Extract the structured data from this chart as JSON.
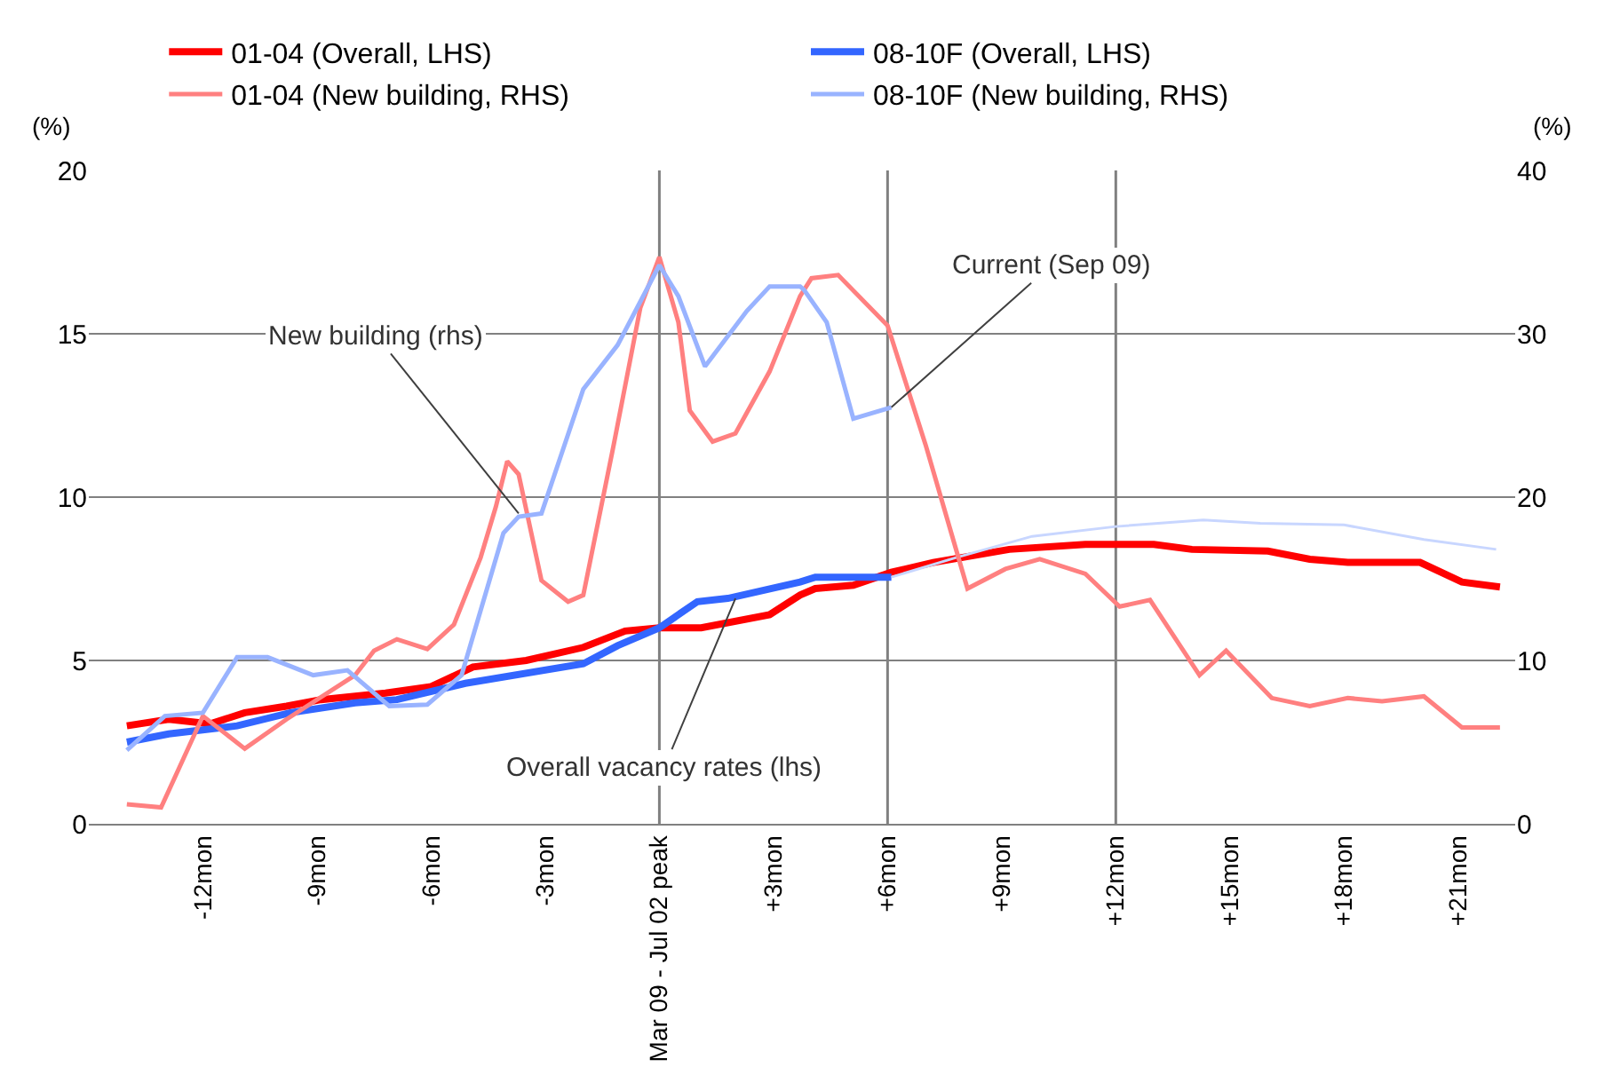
{
  "chart_data": {
    "type": "line",
    "ylabel": "(%)",
    "y2label": "(%)",
    "xlim": [
      -15,
      22.5
    ],
    "xticks": [
      {
        "value": -12,
        "label": "-12mon"
      },
      {
        "value": -9,
        "label": "-9mon"
      },
      {
        "value": -6,
        "label": "-6mon"
      },
      {
        "value": -3,
        "label": "-3mon"
      },
      {
        "value": 0,
        "label": "Mar 09 - Jul 02 peak"
      },
      {
        "value": 3,
        "label": "+3mon"
      },
      {
        "value": 6,
        "label": "+6mon"
      },
      {
        "value": 9,
        "label": "+9mon"
      },
      {
        "value": 12,
        "label": "+12mon"
      },
      {
        "value": 15,
        "label": "+15mon"
      },
      {
        "value": 18,
        "label": "+18mon"
      },
      {
        "value": 21,
        "label": "+21mon"
      }
    ],
    "ylim": [
      0,
      20
    ],
    "yticks": [
      0,
      5,
      10,
      15,
      20
    ],
    "y2lim": [
      0,
      40
    ],
    "y2ticks": [
      0,
      10,
      20,
      30,
      40
    ],
    "grid": "y",
    "legend": "top",
    "marker": "none",
    "line_style": "solid",
    "series": [
      {
        "name": "01-04 (Overall, LHS)",
        "color": "#ff0000",
        "x": [
          -14,
          -12.9,
          -11.8,
          -10.9,
          -9.8,
          -8.9,
          -7.2,
          -6,
          -4.9,
          -3.5,
          -2.0,
          -0.9,
          0,
          1.1,
          2.9,
          3.7,
          4.1,
          5.1,
          6.1,
          7.2,
          9.2,
          11.2,
          13.0,
          14.0,
          16.0,
          17.1,
          18.1,
          20.0,
          21.1,
          22.1
        ],
        "values": [
          3.0,
          3.2,
          3.06,
          3.4,
          3.6,
          3.8,
          4.0,
          4.2,
          4.8,
          5.0,
          5.4,
          5.9,
          6.0,
          6.0,
          6.4,
          7.0,
          7.2,
          7.3,
          7.7,
          8.0,
          8.4,
          8.55,
          8.55,
          8.4,
          8.35,
          8.1,
          8.0,
          8.0,
          7.4,
          7.25
        ]
      },
      {
        "name": "08-10F (Overall, LHS)",
        "color": "#3366ff",
        "x": [
          -14,
          -12.9,
          -11.1,
          -9.7,
          -8.0,
          -6.9,
          -5.1,
          -2.0,
          -1.1,
          0,
          1.0,
          1.8,
          3.7,
          4.1,
          6.1
        ],
        "values": [
          2.5,
          2.75,
          3.0,
          3.4,
          3.7,
          3.8,
          4.3,
          4.9,
          5.45,
          6.0,
          6.8,
          6.9,
          7.4,
          7.55,
          7.55
        ]
      },
      {
        "name": "01-04 (New building, RHS)",
        "color": "#ff8080",
        "axis": "y2",
        "x": [
          -14,
          -13.1,
          -12.0,
          -10.9,
          -9.8,
          -8.0,
          -7.5,
          -6.9,
          -6.1,
          -5.4,
          -4.7,
          -4.3,
          -4.0,
          -3.7,
          -3.1,
          -2.4,
          -2.0,
          -1.2,
          -0.5,
          0,
          0.5,
          0.8,
          1.4,
          2.0,
          2.9,
          3.7,
          4.0,
          4.7,
          6.0,
          7.0,
          8.1,
          9.1,
          10.0,
          11.2,
          12.1,
          12.9,
          14.2,
          14.9,
          16.1,
          17.1,
          18.1,
          19.0,
          20.1,
          21.1,
          22.1
        ],
        "values": [
          1.2,
          1.0,
          6.6,
          4.6,
          6.4,
          9.1,
          10.6,
          11.3,
          10.7,
          12.2,
          16.3,
          19.4,
          22.2,
          21.4,
          14.9,
          13.6,
          14.0,
          23.2,
          31.6,
          34.7,
          30.7,
          25.3,
          23.4,
          23.9,
          27.7,
          32.3,
          33.4,
          33.6,
          30.5,
          23.2,
          14.4,
          15.6,
          16.2,
          15.3,
          13.3,
          13.7,
          9.1,
          10.6,
          7.7,
          7.2,
          7.7,
          7.5,
          7.8,
          5.9,
          5.9
        ]
      },
      {
        "name": "08-10F (New building, RHS)",
        "color": "#99b3ff",
        "axis": "y2",
        "x": [
          -14,
          -13.0,
          -12.0,
          -11.1,
          -10.3,
          -9.1,
          -8.2,
          -7.1,
          -6.1,
          -5.2,
          -4.1,
          -3.7,
          -3.1,
          -2.0,
          -1.1,
          0,
          0.5,
          1.2,
          2.3,
          2.9,
          3.7,
          3.8,
          4.4,
          5.1,
          6.1
        ],
        "values": [
          4.5,
          6.6,
          6.8,
          10.2,
          10.2,
          9.1,
          9.4,
          7.2,
          7.3,
          9.1,
          17.8,
          18.8,
          19.0,
          26.6,
          29.3,
          34.2,
          32.3,
          28.0,
          31.4,
          32.9,
          32.9,
          32.7,
          30.7,
          24.8,
          25.5
        ]
      },
      {
        "color": "#c8d6ff",
        "x": [
          6.1,
          7.8,
          9.8,
          12.0,
          14.3,
          15.8,
          18.0,
          20.1,
          22.0
        ],
        "values": [
          7.55,
          8.15,
          8.8,
          9.1,
          9.3,
          9.2,
          9.15,
          8.7,
          8.4
        ]
      }
    ],
    "ref_lines": [
      {
        "axis": "x",
        "value": 0,
        "color": "#808080"
      },
      {
        "axis": "x",
        "value": 6,
        "color": "#808080"
      },
      {
        "axis": "x",
        "value": 12,
        "color": "#808080"
      }
    ],
    "annotations": [
      {
        "text": "New building (rhs)",
        "x": -3.7,
        "y": 9.5
      },
      {
        "text": "Overall vacancy rates (lhs)",
        "x": 2.0,
        "y": 6.9
      },
      {
        "text": "Current (Sep 09)",
        "x": 6.1,
        "y": 12.75
      }
    ]
  }
}
